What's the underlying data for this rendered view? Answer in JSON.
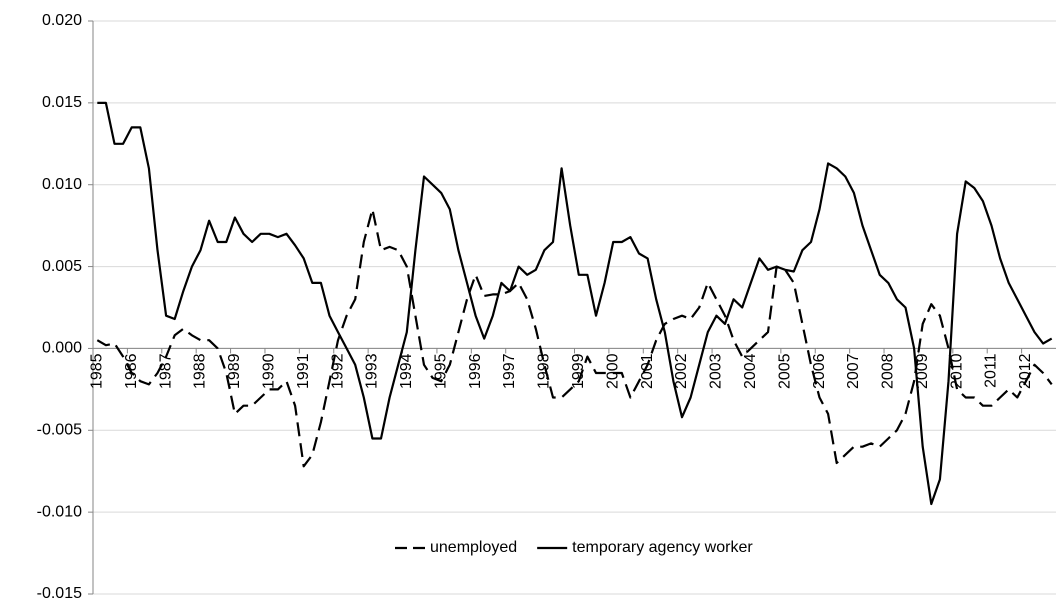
{
  "chart_data": {
    "type": "line",
    "categories": [
      "1985",
      null,
      null,
      null,
      "1986",
      null,
      null,
      null,
      "1987",
      null,
      null,
      null,
      "1988",
      null,
      null,
      null,
      "1989",
      null,
      null,
      null,
      "1990",
      null,
      null,
      null,
      "1991",
      null,
      null,
      null,
      "1992",
      null,
      null,
      null,
      "1993",
      null,
      null,
      null,
      "1994",
      null,
      null,
      null,
      "1995",
      null,
      null,
      null,
      "1996",
      null,
      null,
      null,
      "1997",
      null,
      null,
      null,
      "1998",
      null,
      null,
      null,
      "1999",
      null,
      null,
      null,
      "2000",
      null,
      null,
      null,
      "2001",
      null,
      null,
      null,
      "2002",
      null,
      null,
      null,
      "2003",
      null,
      null,
      null,
      "2004",
      null,
      null,
      null,
      "2005",
      null,
      null,
      null,
      "2006",
      null,
      null,
      null,
      "2007",
      null,
      null,
      null,
      "2008",
      null,
      null,
      null,
      "2009",
      null,
      null,
      null,
      "2010",
      null,
      null,
      null,
      "2011",
      null,
      null,
      null,
      "2012",
      null,
      null,
      null
    ],
    "series": [
      {
        "name": "unemployed",
        "color": "#000000",
        "dash": true,
        "values": [
          0.0005,
          0.0002,
          0.0003,
          -0.0005,
          -0.0015,
          -0.002,
          -0.0022,
          -0.0015,
          -0.0005,
          0.0008,
          0.0012,
          0.0008,
          0.0005,
          0.0005,
          0.0,
          -0.0015,
          -0.004,
          -0.0035,
          -0.0035,
          -0.003,
          -0.0025,
          -0.0025,
          -0.002,
          -0.0035,
          -0.0072,
          -0.0065,
          -0.0045,
          -0.002,
          0.0005,
          0.002,
          0.003,
          0.0065,
          0.0085,
          0.006,
          0.0062,
          0.006,
          0.005,
          0.002,
          -0.001,
          -0.0018,
          -0.002,
          -0.001,
          0.001,
          0.003,
          0.0045,
          0.0032,
          0.0033,
          0.0033,
          0.0035,
          0.004,
          0.003,
          0.0012,
          -0.001,
          -0.003,
          -0.003,
          -0.0025,
          -0.002,
          -0.0005,
          -0.0015,
          -0.0015,
          -0.0015,
          -0.0015,
          -0.003,
          -0.002,
          -0.001,
          0.0005,
          0.0015,
          0.0018,
          0.002,
          0.0018,
          0.0025,
          0.004,
          0.003,
          0.002,
          0.0005,
          -0.0005,
          0.0,
          0.0005,
          0.001,
          0.005,
          0.0048,
          0.004,
          0.0015,
          -0.001,
          -0.003,
          -0.004,
          -0.007,
          -0.0065,
          -0.006,
          -0.006,
          -0.0058,
          -0.006,
          -0.0055,
          -0.005,
          -0.004,
          -0.002,
          0.0015,
          0.0027,
          0.002,
          0.0,
          -0.0025,
          -0.003,
          -0.003,
          -0.0035,
          -0.0035,
          -0.003,
          -0.0025,
          -0.003,
          -0.002,
          -0.001,
          -0.0015,
          -0.0022
        ]
      },
      {
        "name": "temporary agency worker",
        "color": "#000000",
        "dash": false,
        "values": [
          0.015,
          0.015,
          0.0125,
          0.0125,
          0.0135,
          0.0135,
          0.011,
          0.006,
          0.002,
          0.0018,
          0.0035,
          0.005,
          0.006,
          0.0078,
          0.0065,
          0.0065,
          0.008,
          0.007,
          0.0065,
          0.007,
          0.007,
          0.0068,
          0.007,
          0.0063,
          0.0055,
          0.004,
          0.004,
          0.002,
          0.001,
          0.0,
          -0.001,
          -0.003,
          -0.0055,
          -0.0055,
          -0.003,
          -0.001,
          0.001,
          0.006,
          0.0105,
          0.01,
          0.0095,
          0.0085,
          0.006,
          0.004,
          0.002,
          0.0006,
          0.002,
          0.004,
          0.0035,
          0.005,
          0.0045,
          0.0048,
          0.006,
          0.0065,
          0.011,
          0.0075,
          0.0045,
          0.0045,
          0.002,
          0.004,
          0.0065,
          0.0065,
          0.0068,
          0.0058,
          0.0055,
          0.003,
          0.001,
          -0.002,
          -0.0042,
          -0.003,
          -0.001,
          0.001,
          0.002,
          0.0015,
          0.003,
          0.0025,
          0.004,
          0.0055,
          0.0048,
          0.005,
          0.0048,
          0.0047,
          0.006,
          0.0065,
          0.0085,
          0.0113,
          0.011,
          0.0105,
          0.0095,
          0.0075,
          0.006,
          0.0045,
          0.004,
          0.003,
          0.0025,
          0.0,
          -0.006,
          -0.0095,
          -0.008,
          -0.002,
          0.007,
          0.0102,
          0.0098,
          0.009,
          0.0075,
          0.0055,
          0.004,
          0.003,
          0.002,
          0.001,
          0.0003,
          0.0006
        ]
      }
    ],
    "ylim": [
      -0.015,
      0.02
    ],
    "yticks": [
      {
        "value": 0.02,
        "label": "0.020"
      },
      0.015,
      {
        "value": 0.01,
        "label": "0.010"
      },
      0.005,
      {
        "value": 0,
        "label": "0.000"
      },
      -0.005,
      {
        "value": -0.01,
        "label": "-0.010"
      },
      -0.015
    ],
    "grid": true,
    "legend": "bottom"
  }
}
